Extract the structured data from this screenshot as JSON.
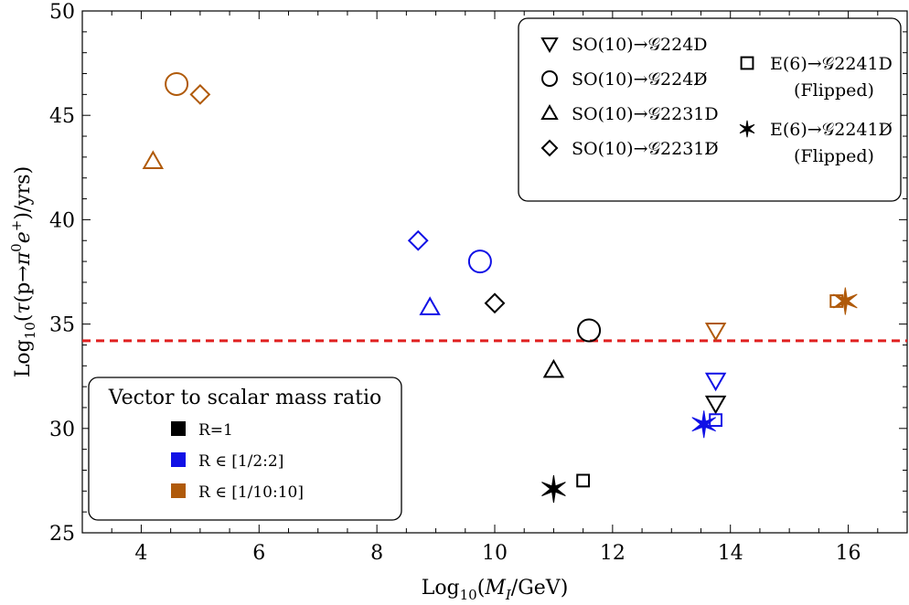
{
  "chart_data": {
    "type": "scatter",
    "xlabel": "Log10(MI/GeV)",
    "ylabel": "Log10(τ(p→π0e+)/yrs)",
    "xlim": [
      3,
      17
    ],
    "ylim": [
      25,
      50
    ],
    "x_ticks": [
      "4",
      "6",
      "8",
      "10",
      "12",
      "14",
      "16"
    ],
    "y_ticks": [
      "25",
      "30",
      "35",
      "40",
      "45",
      "50"
    ],
    "grid": false,
    "reference_line": {
      "y": 34.2,
      "style": "dashed",
      "color": "#e02020"
    },
    "colors": {
      "R=1": "#000000",
      "R∈[1/2:2]": "#1010e6",
      "R∈[1/10:10]": "#b05a0a"
    },
    "marker_legend": {
      "position": "top-right",
      "items": [
        {
          "marker": "triangle-down",
          "text": "SO(10)→𝒢224D"
        },
        {
          "marker": "circle",
          "text": "SO(10)→𝒢224D̸"
        },
        {
          "marker": "triangle-up",
          "text": "SO(10)→𝒢2231D"
        },
        {
          "marker": "diamond",
          "text": "SO(10)→𝒢2231D̸"
        },
        {
          "marker": "square",
          "text": "E(6)→𝒢2241D",
          "sub": "(Flipped)"
        },
        {
          "marker": "star",
          "text": "E(6)→𝒢2241D̸",
          "sub": "(Flipped)"
        }
      ]
    },
    "color_legend": {
      "position": "bottom-left",
      "title": "Vector to scalar mass ratio",
      "items": [
        {
          "label": "R=1",
          "color": "#000000"
        },
        {
          "label": "R ∈ [1/2:2]",
          "color": "#1010e6"
        },
        {
          "label": "R ∈ [1/10:10]",
          "color": "#b05a0a"
        }
      ]
    },
    "series": [
      {
        "name": "R=1",
        "color": "#000000",
        "points": [
          {
            "marker": "triangle-down",
            "x": 13.75,
            "y": 31.2
          },
          {
            "marker": "circle",
            "x": 11.6,
            "y": 34.7
          },
          {
            "marker": "triangle-up",
            "x": 11.0,
            "y": 32.8
          },
          {
            "marker": "diamond",
            "x": 10.0,
            "y": 36.0
          },
          {
            "marker": "square",
            "x": 11.5,
            "y": 27.5
          },
          {
            "marker": "star",
            "x": 11.0,
            "y": 27.1
          }
        ]
      },
      {
        "name": "R ∈ [1/2:2]",
        "color": "#1010e6",
        "points": [
          {
            "marker": "triangle-down",
            "x": 13.75,
            "y": 32.3
          },
          {
            "marker": "circle",
            "x": 9.75,
            "y": 38.0
          },
          {
            "marker": "triangle-up",
            "x": 8.9,
            "y": 35.8
          },
          {
            "marker": "diamond",
            "x": 8.7,
            "y": 39.0
          },
          {
            "marker": "square",
            "x": 13.75,
            "y": 30.4
          },
          {
            "marker": "star",
            "x": 13.55,
            "y": 30.2
          }
        ]
      },
      {
        "name": "R ∈ [1/10:10]",
        "color": "#b05a0a",
        "points": [
          {
            "marker": "triangle-down",
            "x": 13.75,
            "y": 34.7
          },
          {
            "marker": "circle",
            "x": 4.6,
            "y": 46.5
          },
          {
            "marker": "triangle-up",
            "x": 4.2,
            "y": 42.8
          },
          {
            "marker": "diamond",
            "x": 5.0,
            "y": 46.0
          },
          {
            "marker": "square",
            "x": 15.8,
            "y": 36.1
          },
          {
            "marker": "star",
            "x": 15.95,
            "y": 36.1
          }
        ]
      }
    ]
  }
}
